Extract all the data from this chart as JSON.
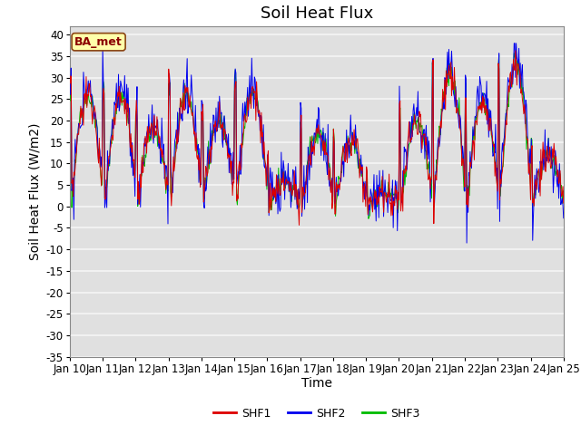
{
  "title": "Soil Heat Flux",
  "xlabel": "Time",
  "ylabel": "Soil Heat Flux (W/m2)",
  "ylim": [
    -35,
    42
  ],
  "yticks": [
    -35,
    -30,
    -25,
    -20,
    -15,
    -10,
    -5,
    0,
    5,
    10,
    15,
    20,
    25,
    30,
    35,
    40
  ],
  "legend_label": "BA_met",
  "line_colors": {
    "SHF1": "#dd0000",
    "SHF2": "#0000ee",
    "SHF3": "#00bb00"
  },
  "background_color": "#ffffff",
  "plot_bg_color": "#e0e0e0",
  "grid_color": "#f5f5f5",
  "n_points": 720,
  "title_fontsize": 13,
  "label_fontsize": 10,
  "tick_fontsize": 8.5
}
